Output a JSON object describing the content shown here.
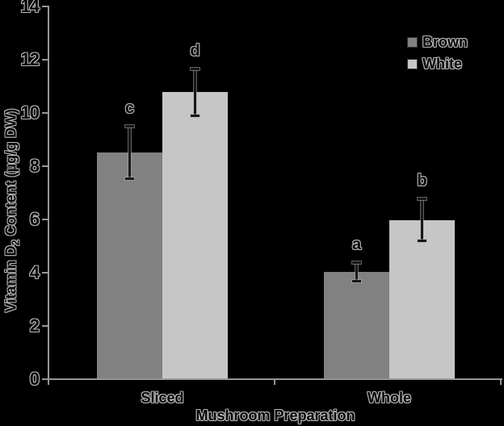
{
  "chart_data": {
    "type": "bar",
    "title": "",
    "categories": [
      "Sliced",
      "Whole"
    ],
    "series": [
      {
        "name": "Brown",
        "color": "#818181",
        "values": [
          8.5,
          4.0
        ],
        "errors": [
          1.0,
          0.35
        ],
        "letters": [
          "c",
          "a"
        ]
      },
      {
        "name": "White",
        "color": "#c6c6c6",
        "values": [
          10.75,
          5.95
        ],
        "errors": [
          0.9,
          0.8
        ],
        "letters": [
          "d",
          "b"
        ]
      }
    ],
    "xlabel": "Mushroom Preparation",
    "ylabel": "Vitamin D2 Content (µg/g DW)",
    "ylabel_parts": {
      "prefix": "Vitamin D",
      "subscript": "2",
      "suffix": " Content (µg/g DW)"
    },
    "y_axis": {
      "min": 0,
      "max": 14,
      "tick_step": 2,
      "ticks": [
        0,
        2,
        4,
        6,
        8,
        10,
        12,
        14
      ]
    },
    "grid": false,
    "legend": {
      "position": "upper-right",
      "labels": [
        "Brown",
        "White"
      ]
    },
    "error_bars": "symmetric with caps",
    "significance_letters": {
      "Sliced": {
        "Brown": "c",
        "White": "d"
      },
      "Whole": {
        "Brown": "a",
        "White": "b"
      }
    },
    "style": {
      "background": "#000000",
      "axis_color": "#969696",
      "bar_brown": "#818181",
      "bar_white": "#c6c6c6",
      "text_color": "#050505",
      "text_halo": "#b9b9b9",
      "error_bar_color": "#181818"
    }
  }
}
